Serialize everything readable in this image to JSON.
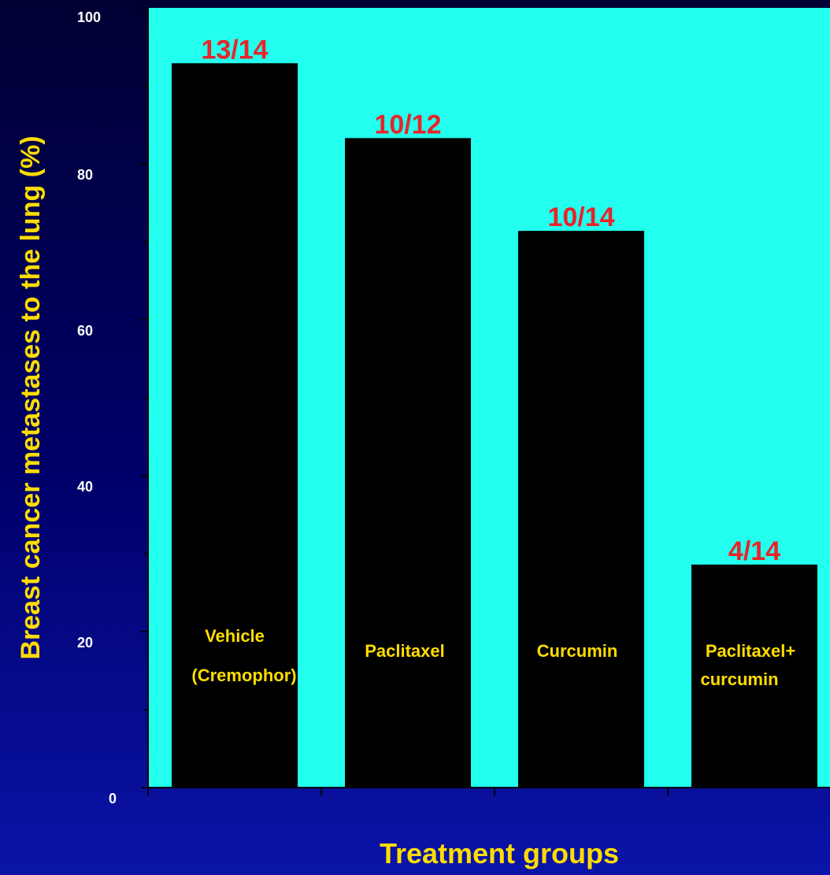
{
  "chart_data": {
    "type": "bar",
    "categories": [
      [
        "Vehicle",
        "(Cremophor)"
      ],
      [
        "Paclitaxel"
      ],
      [
        "Curcumin"
      ],
      [
        "Paclitaxel+",
        "curcumin"
      ]
    ],
    "values": [
      92.9,
      83.3,
      71.4,
      28.6
    ],
    "data_labels": [
      "13/14",
      "10/12",
      "10/14",
      "4/14"
    ],
    "xlabel": "Treatment groups",
    "ylabel": "Breast cancer metastases to the lung (%)",
    "ylim": [
      0,
      100
    ],
    "yticks": [
      0,
      20,
      40,
      60,
      80,
      100
    ],
    "grid": false,
    "legend": "none"
  },
  "colors": {
    "plot_background": "#22ffee",
    "bar_fill": "#000000",
    "data_label": "#e8242a",
    "category_label": "#ffdd00",
    "axis_title": "#ffdd00",
    "tick_label": "#ffffff",
    "axis_line": "#000000"
  }
}
